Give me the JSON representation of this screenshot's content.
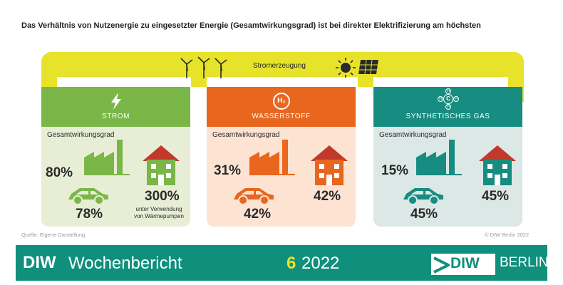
{
  "headline": "Das Verhältnis von Nutzenergie zu eingesetzter Energie (Gesamtwirkungsgrad) ist bei direkter Elektrifizierung am höchsten",
  "band": {
    "label": "Stromerzeugung"
  },
  "colors": {
    "yellow": "#e7e32a",
    "green": "#7ab648",
    "green_bg": "#e8eed5",
    "orange": "#e8661e",
    "orange_bg": "#fde3d2",
    "teal": "#178c80",
    "teal_bg": "#dbe8e5",
    "bar": "#0f8f7c"
  },
  "panels": [
    {
      "title": "STROM",
      "sublabel": "Gesamtwirkungsgrad",
      "factory_pct": "80%",
      "car_pct": "78%",
      "house_pct": "300%",
      "house_note": [
        "unter Verwendung",
        "von Wärmepumpen"
      ]
    },
    {
      "title": "WASSERSTOFF",
      "sublabel": "Gesamtwirkungsgrad",
      "icon_text": "H₂",
      "factory_pct": "31%",
      "car_pct": "42%",
      "house_pct": "42%"
    },
    {
      "title": "SYNTHETISCHES GAS",
      "sublabel": "Gesamtwirkungsgrad",
      "icon_text": "C",
      "icon_atoms": [
        "H",
        "H",
        "H",
        "H"
      ],
      "factory_pct": "15%",
      "car_pct": "45%",
      "house_pct": "45%"
    }
  ],
  "source": "Quelle: Eigene Darstellung.",
  "copyright": "© DIW Berlin 2022",
  "footer": {
    "brand": "DIW",
    "publication": "Wochenbericht",
    "issue": "6",
    "year": "2022",
    "logo_diw": "DIW",
    "logo_city": "BERLIN"
  }
}
